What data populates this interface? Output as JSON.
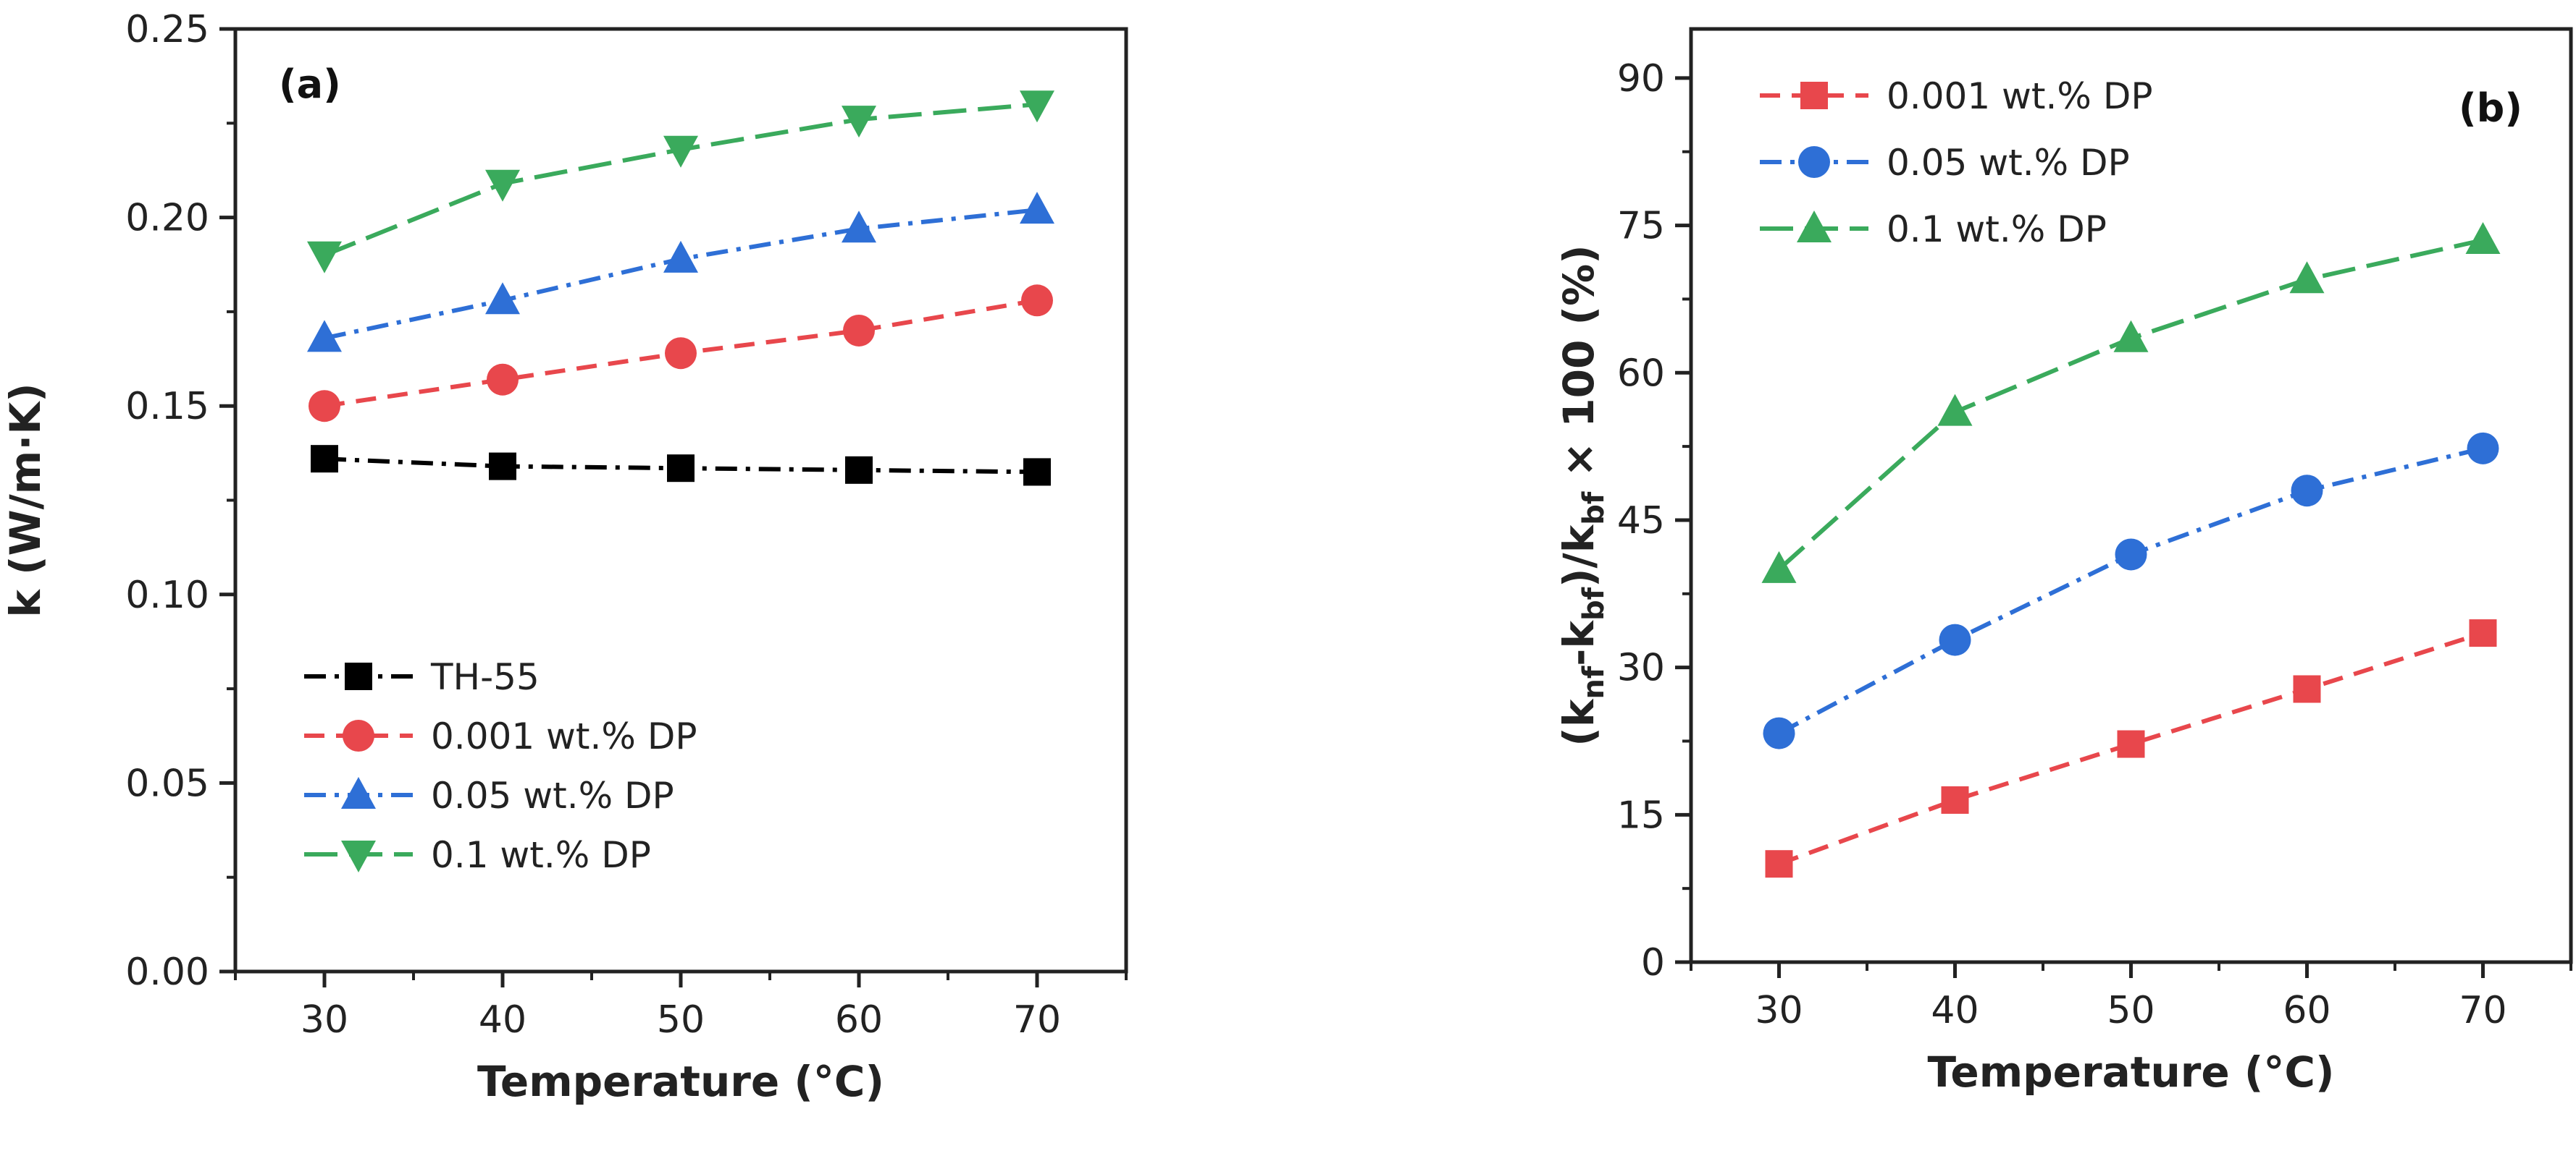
{
  "chart_data": [
    {
      "type": "line",
      "panel_label": "(a)",
      "xlabel": "Temperature (°C)",
      "ylabel": "k (W/m·K)",
      "x": [
        30,
        40,
        50,
        60,
        70
      ],
      "xlim": [
        25,
        75
      ],
      "ylim": [
        0.0,
        0.25
      ],
      "xticks": [
        "30",
        "40",
        "50",
        "60",
        "70"
      ],
      "yticks": [
        "0.00",
        "0.05",
        "0.10",
        "0.15",
        "0.20",
        "0.25"
      ],
      "legend_position": "bottom-left",
      "series": [
        {
          "name": "TH-55",
          "values": [
            0.136,
            0.134,
            0.1335,
            0.133,
            0.1325
          ],
          "color": "#000000",
          "marker": "square",
          "dash": "dashdot"
        },
        {
          "name": "0.001 wt.% DP",
          "values": [
            0.15,
            0.157,
            0.164,
            0.17,
            0.178
          ],
          "color": "#e8474c",
          "marker": "circle",
          "dash": "dash"
        },
        {
          "name": "0.05 wt.% DP",
          "values": [
            0.168,
            0.178,
            0.189,
            0.197,
            0.202
          ],
          "color": "#2e6fd6",
          "marker": "triangle-up",
          "dash": "dashdot"
        },
        {
          "name": "0.1 wt.% DP",
          "values": [
            0.19,
            0.209,
            0.218,
            0.226,
            0.23
          ],
          "color": "#3aaa5c",
          "marker": "triangle-down",
          "dash": "longdash"
        }
      ]
    },
    {
      "type": "line",
      "panel_label": "(b)",
      "xlabel": "Temperature (°C)",
      "ylabel": "(k_nf-k_bf)/k_bf × 100 (%)",
      "ylabel_parts": {
        "open": "(k",
        "sub1": "nf",
        "mid": "-k",
        "sub2": "bf",
        "close": ")/k",
        "sub3": "bf",
        "tail": " × 100 (%)"
      },
      "x": [
        30,
        40,
        50,
        60,
        70
      ],
      "xlim": [
        25,
        75
      ],
      "ylim": [
        0,
        95
      ],
      "xticks": [
        "30",
        "40",
        "50",
        "60",
        "70"
      ],
      "yticks": [
        "0",
        "15",
        "30",
        "45",
        "60",
        "75",
        "90"
      ],
      "legend_position": "top-left",
      "series": [
        {
          "name": "0.001 wt.% DP",
          "values": [
            10,
            16.5,
            22.2,
            27.8,
            33.5
          ],
          "color": "#e8474c",
          "marker": "square",
          "dash": "dash"
        },
        {
          "name": "0.05 wt.% DP",
          "values": [
            23.3,
            32.8,
            41.5,
            48,
            52.3
          ],
          "color": "#2e6fd6",
          "marker": "circle",
          "dash": "dashdot"
        },
        {
          "name": "0.1 wt.% DP",
          "values": [
            40,
            56,
            63.5,
            69.5,
            73.5
          ],
          "color": "#3aaa5c",
          "marker": "triangle-up",
          "dash": "longdash"
        }
      ]
    }
  ]
}
